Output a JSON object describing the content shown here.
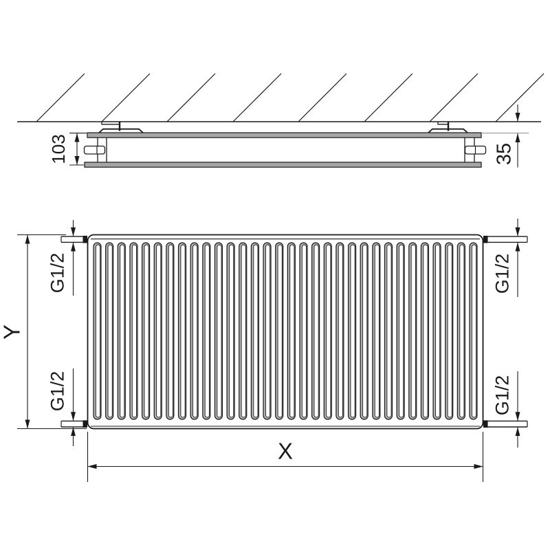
{
  "colors": {
    "line": "#1a1a1a",
    "shade": "#a6a6a6",
    "fin_shade": "#b2b2b2",
    "background": "#ffffff"
  },
  "side_view": {
    "depth": "103",
    "wall_distance": "35"
  },
  "front_view": {
    "height": "Y",
    "width": "X",
    "connections": {
      "top_left": "G1/2",
      "top_right": "G1/2",
      "bottom_left": "G1/2",
      "bottom_right": "G1/2"
    },
    "fin_count": 32
  }
}
